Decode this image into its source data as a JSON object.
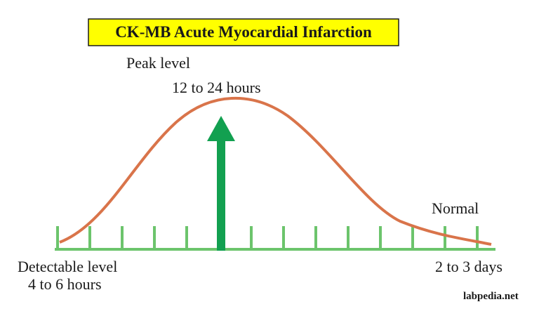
{
  "title": "CK-MB Acute Myocardial Infarction",
  "labels": {
    "peak": "Peak level",
    "peak_time": "12 to 24 hours",
    "detectable": "Detectable level",
    "detectable_time": "4 to 6 hours",
    "normal": "Normal",
    "normal_time": "2 to 3 days"
  },
  "watermark": "labpedia.net"
}
